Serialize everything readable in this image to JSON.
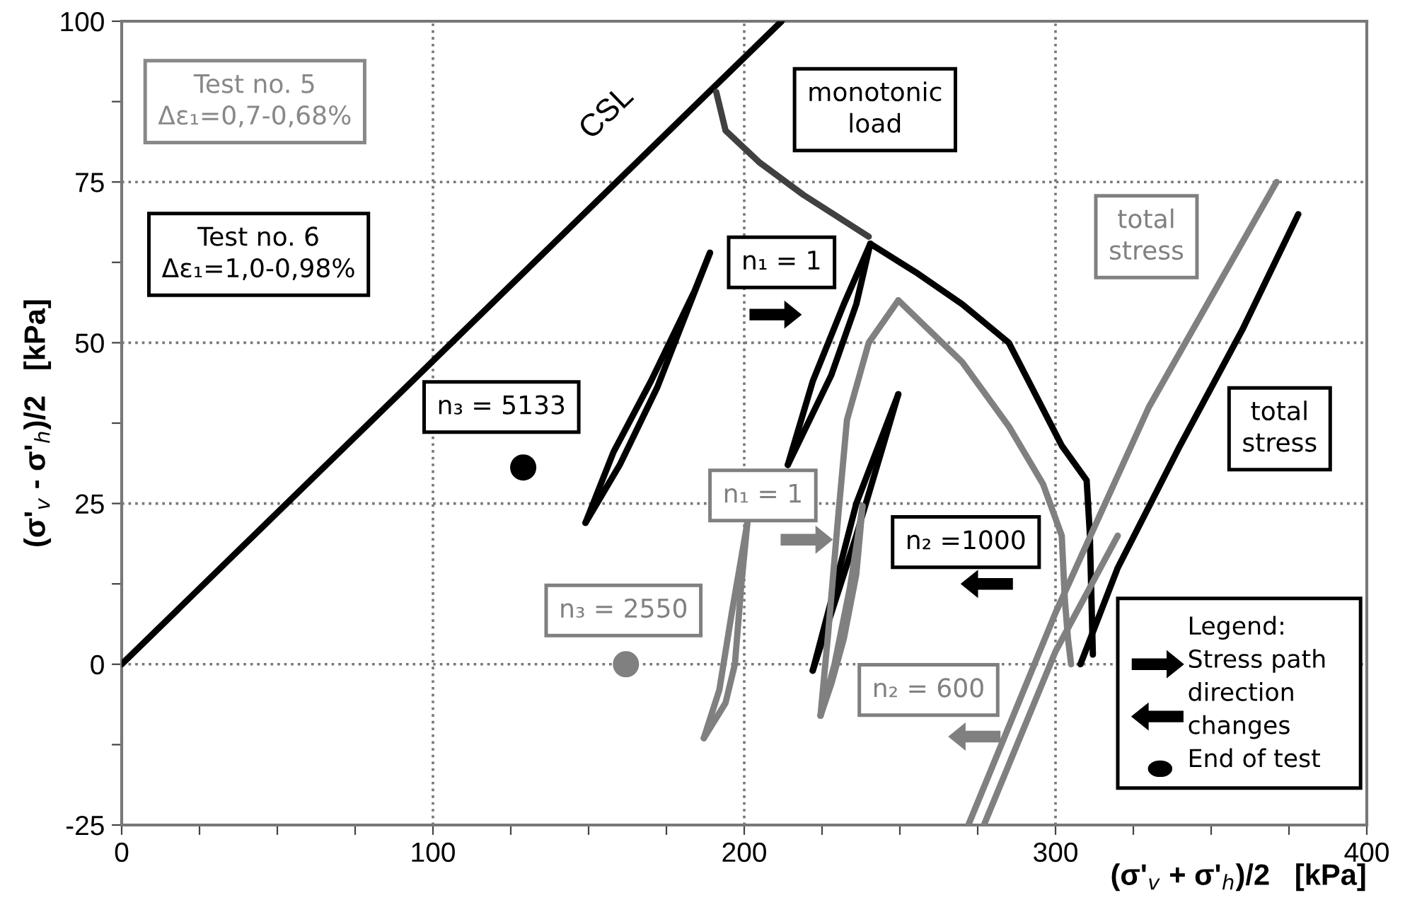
{
  "chart_data": {
    "type": "line",
    "xlabel": "(σ'$_{v}$ + σ'$_{h}$)/2   [kPa]",
    "ylabel": "(σ'$_{v}$ - σ'$_{h}$)/2   [kPa]",
    "xlim": [
      0,
      400
    ],
    "xticks": [
      0,
      {
        "value": 25,
        "label": null
      },
      {
        "value": 50,
        "label": null
      },
      {
        "value": 75,
        "label": null
      },
      100,
      {
        "value": 125,
        "label": null
      },
      {
        "value": 150,
        "label": null
      },
      {
        "value": 175,
        "label": null
      },
      200,
      {
        "value": 225,
        "label": null
      },
      {
        "value": 250,
        "label": null
      },
      {
        "value": 275,
        "label": null
      },
      300,
      {
        "value": 325,
        "label": null
      },
      {
        "value": 350,
        "label": null
      },
      {
        "value": 375,
        "label": null
      },
      400
    ],
    "ylim": [
      -25,
      100
    ],
    "yticks": [
      -25,
      {
        "value": -12.5,
        "label": null
      },
      0,
      {
        "value": 12.5,
        "label": null
      },
      25,
      {
        "value": 37.5,
        "label": null
      },
      50,
      {
        "value": 62.5,
        "label": null
      },
      75,
      {
        "value": 87.5,
        "label": null
      },
      100
    ],
    "grid": true,
    "marker": "none",
    "line_style": "solid",
    "series": [
      {
        "color": "#000000",
        "x": [
          0,
          212
        ],
        "values": [
          0,
          100
        ]
      },
      {
        "color": "#404040",
        "x": [
          191,
          194,
          205,
          219,
          240
        ],
        "values": [
          89,
          83,
          78,
          73,
          66.5
        ]
      },
      {
        "color": "#000000",
        "x": [
          149,
          160,
          172,
          189
        ],
        "values": [
          22,
          31,
          43,
          64
        ]
      },
      {
        "color": "#000000",
        "x": [
          149,
          158,
          170,
          184,
          189
        ],
        "values": [
          22,
          33,
          44,
          58,
          64
        ]
      },
      {
        "color": "#000000",
        "x": [
          214,
          222,
          232,
          240.5
        ],
        "values": [
          31,
          44,
          56,
          65.4
        ]
      },
      {
        "color": "#000000",
        "x": [
          214,
          219,
          228,
          236,
          240.5
        ],
        "values": [
          31,
          36,
          45,
          56,
          65.4
        ]
      },
      {
        "color": "#000000",
        "x": [
          240.5,
          255,
          270,
          285,
          302,
          310,
          311,
          312
        ],
        "values": [
          65.4,
          61,
          56,
          50,
          34,
          28.6,
          20.5,
          1.5
        ]
      },
      {
        "color": "#000000",
        "x": [
          222,
          228,
          236,
          249.5
        ],
        "values": [
          -1,
          10,
          25,
          42
        ]
      },
      {
        "color": "#000000",
        "x": [
          222,
          228,
          236,
          244,
          249.5
        ],
        "values": [
          -1,
          8,
          20,
          33,
          42
        ]
      },
      {
        "color": "#000000",
        "x": [
          308,
          320,
          340,
          360,
          378
        ],
        "values": [
          0,
          15,
          34,
          52,
          70
        ]
      },
      {
        "color": "#808080",
        "x": [
          187,
          192,
          196,
          201
        ],
        "values": [
          -11.5,
          -4,
          8,
          22
        ]
      },
      {
        "color": "#808080",
        "x": [
          187,
          194,
          197,
          199,
          201
        ],
        "values": [
          -11.5,
          -6,
          0,
          12,
          22
        ]
      },
      {
        "color": "#808080",
        "x": [
          224.5,
          227,
          230,
          233,
          240,
          249.5
        ],
        "values": [
          -8,
          5,
          22,
          38,
          50,
          56.6
        ]
      },
      {
        "color": "#808080",
        "x": [
          224.5,
          229,
          234,
          238
        ],
        "values": [
          -8,
          0,
          12,
          24.6
        ]
      },
      {
        "color": "#808080",
        "x": [
          224.5,
          228,
          232,
          236,
          238
        ],
        "values": [
          -8,
          -3,
          4,
          14,
          24.6
        ]
      },
      {
        "color": "#808080",
        "x": [
          249.5,
          270,
          285,
          296,
          302,
          303,
          304,
          305
        ],
        "values": [
          56.6,
          47,
          37,
          28,
          20,
          10,
          4,
          0
        ]
      },
      {
        "color": "#808080",
        "x": [
          272,
          300,
          330,
          371
        ],
        "values": [
          -25,
          8,
          40,
          75
        ]
      },
      {
        "color": "#808080",
        "x": [
          277,
          300,
          320
        ],
        "values": [
          -25,
          2,
          20
        ]
      },
      {
        "type": "scatter",
        "marker": "circle",
        "x": [
          129,
          162
        ],
        "values": [
          30.6,
          0
        ],
        "colors": [
          "#000000",
          "#808080"
        ]
      }
    ],
    "annotations": [
      "Test no. 5\nΔε₁=0,7-0,68%",
      "Test no. 6\nΔε₁=1,0-0,98%",
      "Legend:\nStress path\ndirection\nchanges\nEnd of test",
      "CSL",
      "monotonic\nload",
      "n₁ = 1",
      "n₃ = 5133",
      "n₁ = 1",
      "n₃ = 2550",
      "n₂ =1000",
      "n₂ = 600",
      "total\nstress",
      "total\nstress"
    ]
  }
}
